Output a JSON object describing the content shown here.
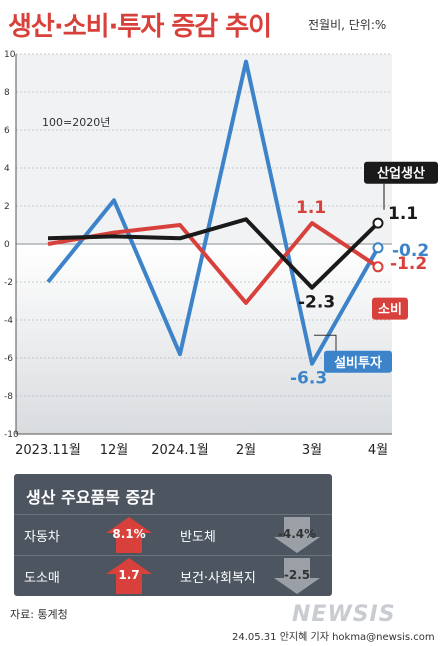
{
  "title": "생산·소비·투자 증감 추이",
  "unit_note": "전월비, 단위:%",
  "chart_data": {
    "type": "line",
    "categories": [
      "2023.11월",
      "12월",
      "2024.1월",
      "2월",
      "3월",
      "4월"
    ],
    "yticks": [
      "10",
      "8",
      "6",
      "4",
      "2",
      "0",
      "-2",
      "-4",
      "-6",
      "-8",
      "-10"
    ],
    "ylim": [
      -10,
      10
    ],
    "base_note": "100=2020년",
    "series": [
      {
        "name": "산업생산",
        "color": "#1a1a1a",
        "values": [
          0.3,
          0.4,
          0.3,
          1.3,
          -2.3,
          1.1
        ]
      },
      {
        "name": "소비",
        "color": "#d8413b",
        "values": [
          0.0,
          0.6,
          1.0,
          -3.1,
          1.1,
          -1.2
        ]
      },
      {
        "name": "설비투자",
        "color": "#3d83c9",
        "values": [
          -2.0,
          2.3,
          -5.8,
          9.6,
          -6.3,
          -0.2
        ]
      }
    ],
    "labels": {
      "prod_last": "1.1",
      "prod_mar": "-2.3",
      "cons_mar": "1.1",
      "cons_last": "-1.2",
      "inv_mar": "-6.3",
      "inv_last": "-0.2"
    },
    "legend": {
      "prod": "산업생산",
      "cons": "소비",
      "inv": "설비투자"
    }
  },
  "panel": {
    "title": "생산 주요품목 증감",
    "items": [
      {
        "label": "자동차",
        "value": "8.1%",
        "dir": "up"
      },
      {
        "label": "반도체",
        "value": "-4.4%",
        "dir": "down"
      },
      {
        "label": "도소매",
        "value": "1.7",
        "dir": "up"
      },
      {
        "label": "보건·사회복지",
        "value": "-2.5",
        "dir": "down"
      }
    ]
  },
  "colors": {
    "up": "#d8413b",
    "down": "#9aa0a6"
  },
  "source": "자료: 통계청",
  "watermark": "NEWSIS",
  "credit": "24.05.31 안지혜 기자 hokma@newsis.com"
}
